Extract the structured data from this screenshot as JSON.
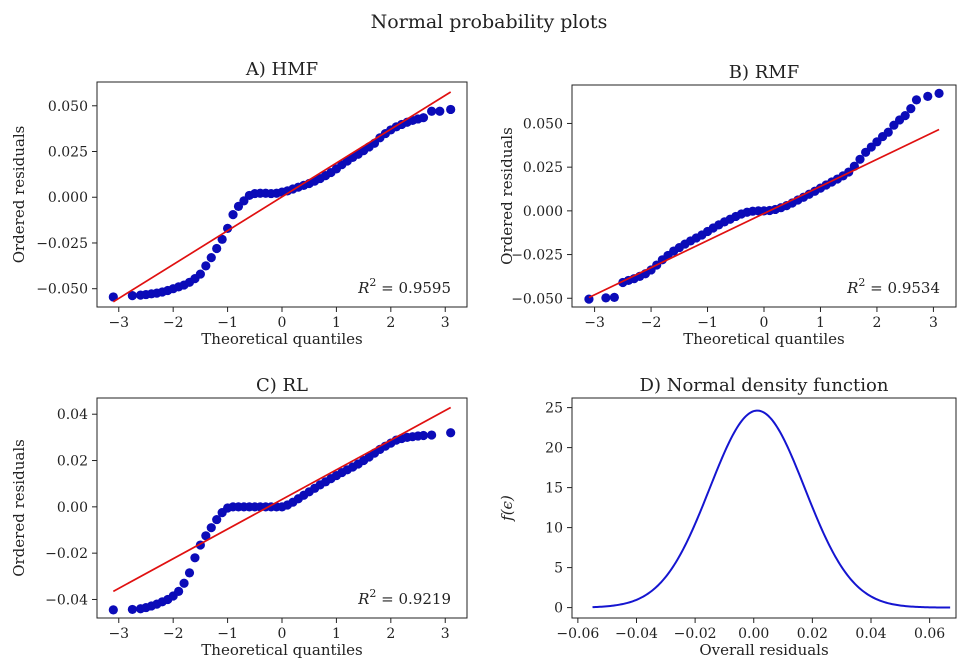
{
  "figure": {
    "title": "Normal probability plots"
  },
  "colors": {
    "points": "#0b0bb8",
    "fit_line": "#e01010",
    "density_line": "#1515d0"
  },
  "chart_data": [
    {
      "type": "scatter",
      "panel_title": "A) HMF",
      "xlabel": "Theoretical quantiles",
      "ylabel": "Ordered residuals",
      "xlim": [
        -3.4,
        3.4
      ],
      "ylim": [
        -0.06,
        0.063
      ],
      "xticks": [
        -3,
        -2,
        -1,
        0,
        1,
        2,
        3
      ],
      "yticks": [
        -0.05,
        -0.025,
        0.0,
        0.025,
        0.05
      ],
      "ytick_labels": [
        "−0.050",
        "−0.025",
        "0.000",
        "0.025",
        "0.050"
      ],
      "xtick_labels": [
        "−3",
        "−2",
        "−1",
        "0",
        "1",
        "2",
        "3"
      ],
      "fit_line": {
        "slope": 0.0185,
        "intercept": 0.0002
      },
      "annotation_prefix": "R",
      "annotation_sup": "2",
      "annotation_value": " = 0.9595",
      "points": [
        [
          -3.1,
          -0.0545
        ],
        [
          -2.75,
          -0.0538
        ],
        [
          -2.6,
          -0.0535
        ],
        [
          -2.5,
          -0.0532
        ],
        [
          -2.4,
          -0.0528
        ],
        [
          -2.3,
          -0.0524
        ],
        [
          -2.2,
          -0.0518
        ],
        [
          -2.1,
          -0.051
        ],
        [
          -2.0,
          -0.05
        ],
        [
          -1.9,
          -0.049
        ],
        [
          -1.8,
          -0.048
        ],
        [
          -1.7,
          -0.0465
        ],
        [
          -1.6,
          -0.0445
        ],
        [
          -1.5,
          -0.042
        ],
        [
          -1.4,
          -0.0375
        ],
        [
          -1.3,
          -0.033
        ],
        [
          -1.2,
          -0.028
        ],
        [
          -1.1,
          -0.023
        ],
        [
          -1.0,
          -0.017
        ],
        [
          -0.9,
          -0.0095
        ],
        [
          -0.8,
          -0.005
        ],
        [
          -0.7,
          -0.002
        ],
        [
          -0.6,
          0.001
        ],
        [
          -0.5,
          0.002
        ],
        [
          -0.4,
          0.0022
        ],
        [
          -0.3,
          0.0022
        ],
        [
          -0.2,
          0.002
        ],
        [
          -0.1,
          0.0022
        ],
        [
          0.0,
          0.0028
        ],
        [
          0.1,
          0.0035
        ],
        [
          0.2,
          0.0045
        ],
        [
          0.3,
          0.0055
        ],
        [
          0.4,
          0.0065
        ],
        [
          0.5,
          0.0075
        ],
        [
          0.6,
          0.0088
        ],
        [
          0.7,
          0.0102
        ],
        [
          0.8,
          0.0118
        ],
        [
          0.9,
          0.0135
        ],
        [
          1.0,
          0.0155
        ],
        [
          1.1,
          0.0178
        ],
        [
          1.2,
          0.0198
        ],
        [
          1.3,
          0.0218
        ],
        [
          1.4,
          0.0235
        ],
        [
          1.5,
          0.0255
        ],
        [
          1.6,
          0.0275
        ],
        [
          1.7,
          0.0295
        ],
        [
          1.8,
          0.0325
        ],
        [
          1.9,
          0.0348
        ],
        [
          2.0,
          0.0368
        ],
        [
          2.1,
          0.0385
        ],
        [
          2.2,
          0.0398
        ],
        [
          2.3,
          0.041
        ],
        [
          2.4,
          0.042
        ],
        [
          2.5,
          0.0428
        ],
        [
          2.6,
          0.0435
        ],
        [
          2.75,
          0.047
        ],
        [
          2.9,
          0.047
        ],
        [
          3.1,
          0.048
        ]
      ]
    },
    {
      "type": "scatter",
      "panel_title": "B) RMF",
      "xlabel": "Theoretical quantiles",
      "ylabel": "Ordered residuals",
      "xlim": [
        -3.4,
        3.4
      ],
      "ylim": [
        -0.055,
        0.072
      ],
      "xticks": [
        -3,
        -2,
        -1,
        0,
        1,
        2,
        3
      ],
      "yticks": [
        -0.05,
        -0.025,
        0.0,
        0.025,
        0.05
      ],
      "ytick_labels": [
        "−0.050",
        "−0.025",
        "0.000",
        "0.025",
        "0.050"
      ],
      "xtick_labels": [
        "−3",
        "−2",
        "−1",
        "0",
        "1",
        "2",
        "3"
      ],
      "fit_line": {
        "slope": 0.0155,
        "intercept": -0.0015
      },
      "annotation_prefix": "R",
      "annotation_sup": "2",
      "annotation_value": " = 0.9534",
      "points": [
        [
          -3.1,
          -0.0505
        ],
        [
          -2.8,
          -0.0498
        ],
        [
          -2.65,
          -0.0495
        ],
        [
          -2.5,
          -0.041
        ],
        [
          -2.4,
          -0.0398
        ],
        [
          -2.3,
          -0.0388
        ],
        [
          -2.2,
          -0.0375
        ],
        [
          -2.1,
          -0.036
        ],
        [
          -2.0,
          -0.0338
        ],
        [
          -1.9,
          -0.031
        ],
        [
          -1.8,
          -0.028
        ],
        [
          -1.7,
          -0.0255
        ],
        [
          -1.6,
          -0.023
        ],
        [
          -1.5,
          -0.021
        ],
        [
          -1.4,
          -0.019
        ],
        [
          -1.3,
          -0.0172
        ],
        [
          -1.2,
          -0.0155
        ],
        [
          -1.1,
          -0.0138
        ],
        [
          -1.0,
          -0.0118
        ],
        [
          -0.9,
          -0.0098
        ],
        [
          -0.8,
          -0.008
        ],
        [
          -0.7,
          -0.0063
        ],
        [
          -0.6,
          -0.0048
        ],
        [
          -0.5,
          -0.0032
        ],
        [
          -0.4,
          -0.0018
        ],
        [
          -0.3,
          -0.0008
        ],
        [
          -0.2,
          -0.0002
        ],
        [
          -0.1,
          0.0
        ],
        [
          0.0,
          0.0
        ],
        [
          0.1,
          0.0002
        ],
        [
          0.2,
          0.0008
        ],
        [
          0.3,
          0.0018
        ],
        [
          0.4,
          0.003
        ],
        [
          0.5,
          0.0045
        ],
        [
          0.6,
          0.0062
        ],
        [
          0.7,
          0.0078
        ],
        [
          0.8,
          0.0095
        ],
        [
          0.9,
          0.0112
        ],
        [
          1.0,
          0.013
        ],
        [
          1.1,
          0.0148
        ],
        [
          1.2,
          0.0165
        ],
        [
          1.3,
          0.0182
        ],
        [
          1.4,
          0.02
        ],
        [
          1.5,
          0.0222
        ],
        [
          1.6,
          0.0255
        ],
        [
          1.7,
          0.0295
        ],
        [
          1.8,
          0.0335
        ],
        [
          1.9,
          0.0365
        ],
        [
          2.0,
          0.0395
        ],
        [
          2.1,
          0.0425
        ],
        [
          2.2,
          0.045
        ],
        [
          2.3,
          0.049
        ],
        [
          2.4,
          0.052
        ],
        [
          2.5,
          0.0545
        ],
        [
          2.6,
          0.0585
        ],
        [
          2.7,
          0.0635
        ],
        [
          2.9,
          0.0655
        ],
        [
          3.1,
          0.0672
        ]
      ]
    },
    {
      "type": "scatter",
      "panel_title": "C) RL",
      "xlabel": "Theoretical quantiles",
      "ylabel": "Ordered residuals",
      "xlim": [
        -3.4,
        3.4
      ],
      "ylim": [
        -0.048,
        0.047
      ],
      "xticks": [
        -3,
        -2,
        -1,
        0,
        1,
        2,
        3
      ],
      "yticks": [
        -0.04,
        -0.02,
        0.0,
        0.02,
        0.04
      ],
      "ytick_labels": [
        "−0.04",
        "−0.02",
        "0.00",
        "0.02",
        "0.04"
      ],
      "xtick_labels": [
        "−3",
        "−2",
        "−1",
        "0",
        "1",
        "2",
        "3"
      ],
      "fit_line": {
        "slope": 0.0128,
        "intercept": 0.0032
      },
      "annotation_prefix": "R",
      "annotation_sup": "2",
      "annotation_value": " = 0.9219",
      "points": [
        [
          -3.1,
          -0.0445
        ],
        [
          -2.75,
          -0.0443
        ],
        [
          -2.6,
          -0.044
        ],
        [
          -2.5,
          -0.0435
        ],
        [
          -2.4,
          -0.0428
        ],
        [
          -2.3,
          -0.042
        ],
        [
          -2.2,
          -0.041
        ],
        [
          -2.1,
          -0.04
        ],
        [
          -2.0,
          -0.0385
        ],
        [
          -1.9,
          -0.0365
        ],
        [
          -1.8,
          -0.033
        ],
        [
          -1.7,
          -0.0285
        ],
        [
          -1.6,
          -0.022
        ],
        [
          -1.5,
          -0.0165
        ],
        [
          -1.4,
          -0.0125
        ],
        [
          -1.3,
          -0.009
        ],
        [
          -1.2,
          -0.0055
        ],
        [
          -1.1,
          -0.0025
        ],
        [
          -1.0,
          -0.0005
        ],
        [
          -0.9,
          0.0
        ],
        [
          -0.8,
          0.0
        ],
        [
          -0.7,
          0.0
        ],
        [
          -0.6,
          0.0
        ],
        [
          -0.5,
          0.0
        ],
        [
          -0.4,
          0.0
        ],
        [
          -0.3,
          0.0
        ],
        [
          -0.2,
          0.0
        ],
        [
          -0.1,
          0.0
        ],
        [
          0.0,
          0.0
        ],
        [
          0.1,
          0.0008
        ],
        [
          0.2,
          0.002
        ],
        [
          0.3,
          0.0035
        ],
        [
          0.4,
          0.005
        ],
        [
          0.5,
          0.0065
        ],
        [
          0.6,
          0.008
        ],
        [
          0.7,
          0.0095
        ],
        [
          0.8,
          0.0108
        ],
        [
          0.9,
          0.0122
        ],
        [
          1.0,
          0.0135
        ],
        [
          1.1,
          0.0148
        ],
        [
          1.2,
          0.016
        ],
        [
          1.3,
          0.0172
        ],
        [
          1.4,
          0.0185
        ],
        [
          1.5,
          0.02
        ],
        [
          1.6,
          0.0215
        ],
        [
          1.7,
          0.0232
        ],
        [
          1.8,
          0.0248
        ],
        [
          1.9,
          0.0262
        ],
        [
          2.0,
          0.0275
        ],
        [
          2.1,
          0.0288
        ],
        [
          2.2,
          0.0295
        ],
        [
          2.3,
          0.03
        ],
        [
          2.4,
          0.0303
        ],
        [
          2.5,
          0.0306
        ],
        [
          2.6,
          0.0308
        ],
        [
          2.75,
          0.031
        ],
        [
          3.1,
          0.032
        ]
      ]
    },
    {
      "type": "line",
      "panel_title": "D) Normal density function",
      "xlabel": "Overall residuals",
      "ylabel": "f(ϵ)",
      "xlim": [
        -0.062,
        0.069
      ],
      "ylim": [
        -1.3,
        26.2
      ],
      "xticks": [
        -0.06,
        -0.04,
        -0.02,
        0.0,
        0.02,
        0.04,
        0.06
      ],
      "xtick_labels": [
        "−0.06",
        "−0.04",
        "−0.02",
        "0.00",
        "0.02",
        "0.04",
        "0.06"
      ],
      "yticks": [
        0,
        5,
        10,
        15,
        20,
        25
      ],
      "ytick_labels": [
        "0",
        "5",
        "10",
        "15",
        "20",
        "25"
      ],
      "density": {
        "mean": 0.0012,
        "sd": 0.0162,
        "x_range": [
          -0.055,
          0.067
        ]
      }
    }
  ]
}
